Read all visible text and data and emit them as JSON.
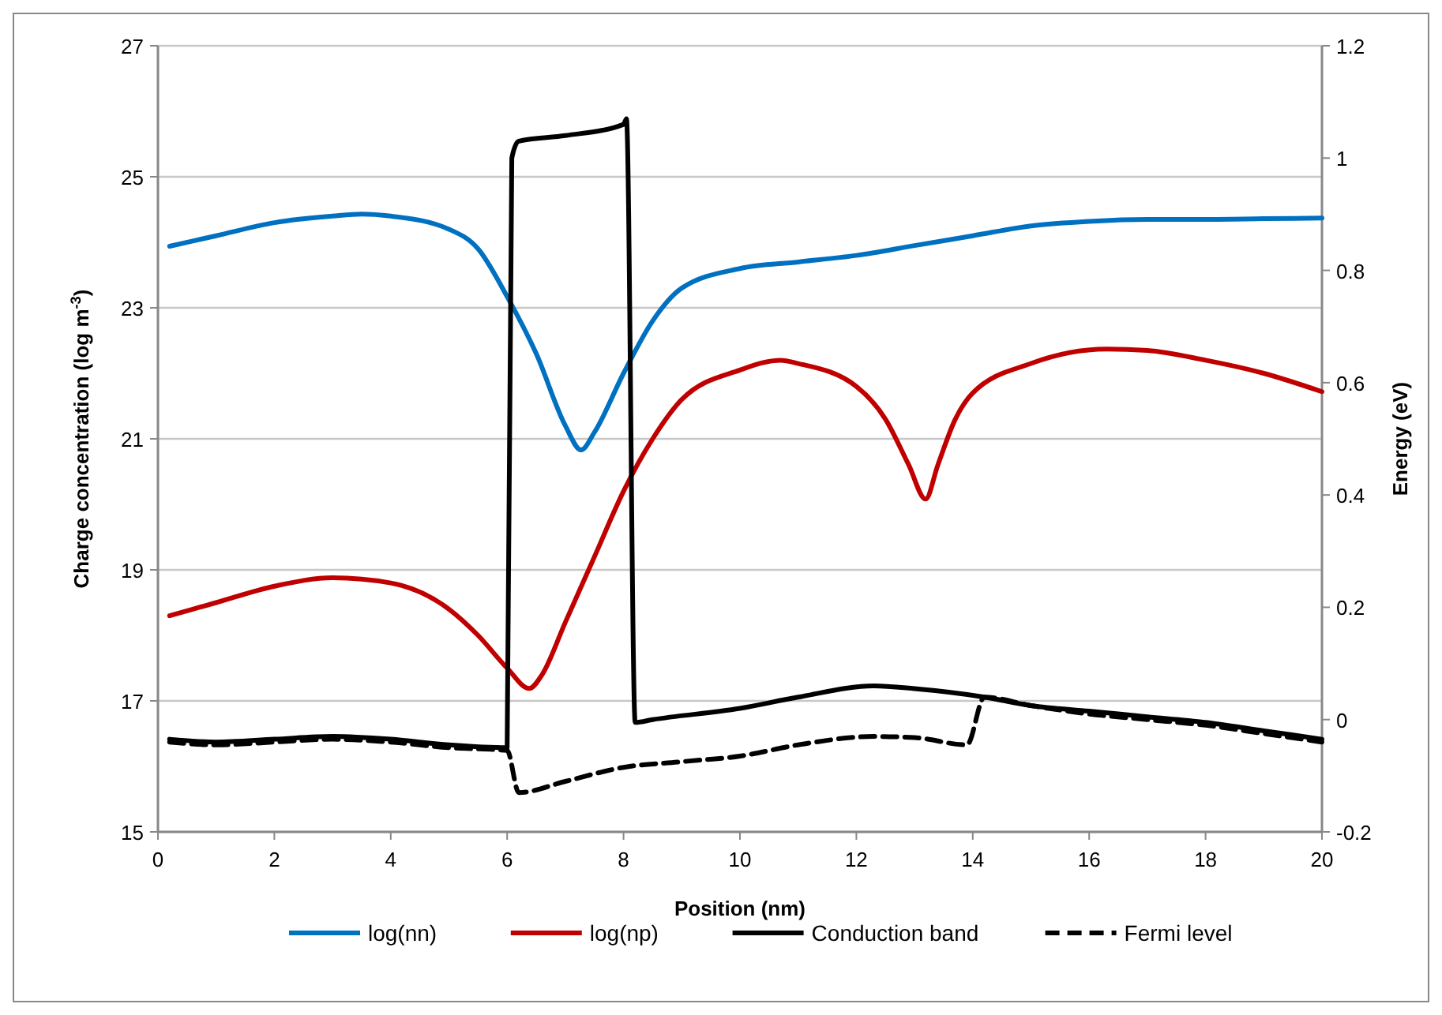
{
  "chart_data": {
    "type": "line",
    "xlabel": "Position (nm)",
    "ylabel": "Charge concentration (log m$^{-3}$)",
    "y2label": "Energy (eV)",
    "xlim": [
      0,
      20
    ],
    "xticks": [
      0,
      2,
      4,
      6,
      8,
      10,
      12,
      14,
      16,
      18,
      20
    ],
    "ylim": [
      15,
      27
    ],
    "yticks": [
      15,
      17,
      19,
      21,
      23,
      25,
      27
    ],
    "y2lim": [
      -0.2,
      1.2
    ],
    "y2ticks": [
      -0.2,
      0,
      0.2,
      0.4,
      0.6,
      0.8,
      1,
      1.2
    ],
    "grid": "y",
    "legend": "bottom",
    "line_style": "solid",
    "marker": "none",
    "series": [
      {
        "name": "log(nn)",
        "color": "#0070c0",
        "x": [
          0.2,
          1,
          2,
          3,
          3.5,
          4,
          5,
          5.5,
          6,
          6.5,
          7,
          7.27,
          7.5,
          8,
          8.5,
          9,
          10,
          11,
          12,
          13,
          14,
          15,
          16,
          17,
          18,
          19,
          20
        ],
        "values": [
          23.94,
          24.1,
          24.3,
          24.4,
          24.43,
          24.4,
          24.2,
          23.9,
          23.17,
          22.3,
          21.2,
          20.83,
          21.1,
          22.0,
          22.8,
          23.3,
          23.6,
          23.7,
          23.8,
          23.95,
          24.1,
          24.25,
          24.32,
          24.35,
          24.35,
          24.36,
          24.37
        ]
      },
      {
        "name": "log(np)",
        "color": "#c00000",
        "x": [
          0.2,
          1,
          2,
          3,
          4,
          5,
          5.5,
          6,
          6.38,
          6.6,
          7,
          7.5,
          8,
          8.5,
          9,
          10,
          10.7,
          11,
          12,
          12.5,
          12.9,
          13.19,
          13.4,
          13.7,
          14,
          15,
          16.3,
          17,
          18,
          19,
          20
        ],
        "values": [
          18.3,
          18.5,
          18.75,
          18.88,
          18.8,
          18.4,
          18.0,
          17.5,
          17.19,
          17.4,
          18.2,
          19.2,
          20.2,
          21.0,
          21.6,
          22.05,
          22.2,
          22.15,
          21.8,
          21.3,
          20.6,
          20.08,
          20.6,
          21.3,
          21.7,
          22.15,
          22.37,
          22.35,
          22.2,
          22.0,
          21.72
        ]
      },
      {
        "name": "Conduction band",
        "color": "#000000",
        "axis": "y2",
        "x": [
          0.2,
          1,
          2,
          3,
          4,
          5,
          6,
          6.08,
          6.2,
          7,
          8,
          8.05,
          8.2,
          8.5,
          10,
          11,
          12.3,
          13,
          14.2,
          15,
          16,
          17,
          18,
          19,
          20
        ],
        "values": [
          -0.035,
          -0.04,
          -0.035,
          -0.03,
          -0.035,
          -0.045,
          -0.05,
          1.0,
          1.03,
          1.04,
          1.06,
          1.07,
          -0.005,
          0.0,
          0.02,
          0.04,
          0.06,
          0.055,
          0.04,
          0.025,
          0.015,
          0.005,
          -0.005,
          -0.02,
          -0.035
        ]
      },
      {
        "name": "Fermi level",
        "color": "#000000",
        "axis": "y2",
        "line_style": "dashed",
        "x": [
          0.2,
          1,
          2,
          3,
          4,
          5,
          6,
          6.2,
          7,
          8,
          9,
          10,
          11,
          12.3,
          13,
          13.9,
          14.2,
          15,
          16,
          17,
          18,
          19,
          20
        ],
        "values": [
          -0.04,
          -0.045,
          -0.04,
          -0.035,
          -0.04,
          -0.05,
          -0.055,
          -0.13,
          -0.11,
          -0.085,
          -0.075,
          -0.065,
          -0.045,
          -0.03,
          -0.032,
          -0.045,
          0.04,
          0.025,
          0.01,
          0.0,
          -0.01,
          -0.025,
          -0.04
        ]
      }
    ]
  }
}
